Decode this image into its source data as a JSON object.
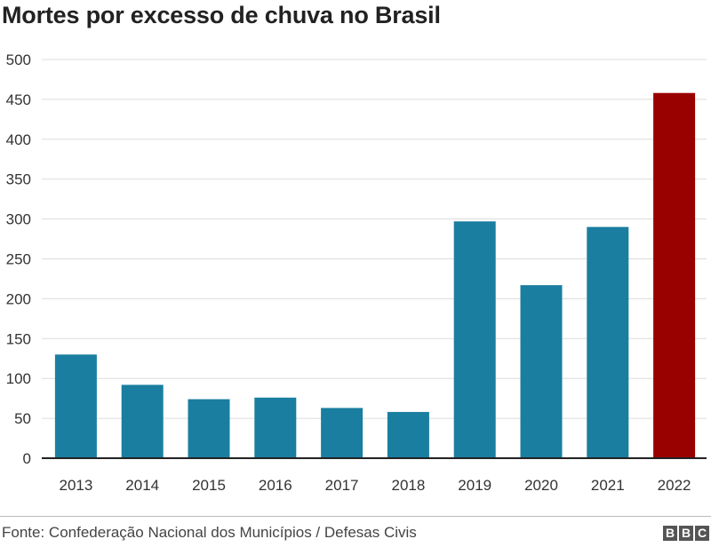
{
  "chart_data": {
    "type": "bar",
    "title": "Mortes por excesso de chuva no Brasil",
    "xlabel": "",
    "ylabel": "",
    "categories": [
      "2013",
      "2014",
      "2015",
      "2016",
      "2017",
      "2018",
      "2019",
      "2020",
      "2021",
      "2022"
    ],
    "values": [
      130,
      92,
      74,
      76,
      63,
      58,
      297,
      217,
      290,
      458
    ],
    "ylim": [
      0,
      500
    ],
    "yticks": [
      0,
      50,
      100,
      150,
      200,
      250,
      300,
      350,
      400,
      450,
      500
    ],
    "grid": true,
    "colors": {
      "default": "#1a7ea0",
      "highlight": "#990000"
    },
    "highlight_category": "2022"
  },
  "footer": {
    "source": "Fonte: Confederação Nacional dos Municípios / Defesas Civis",
    "logo_letters": [
      "B",
      "B",
      "C"
    ]
  }
}
